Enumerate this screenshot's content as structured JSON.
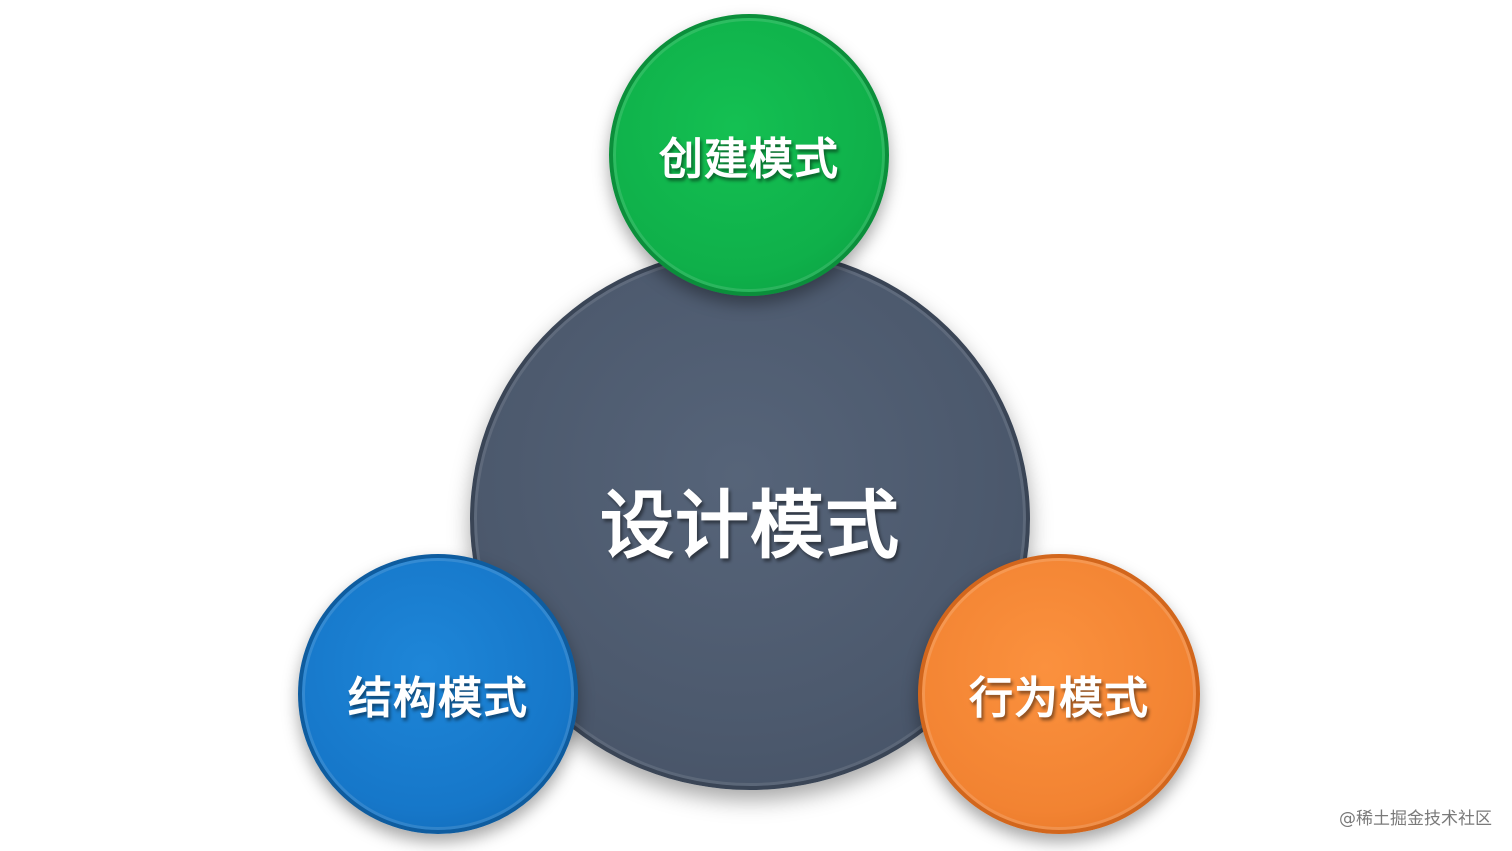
{
  "diagram": {
    "center": {
      "label": "设计模式",
      "color": "#4c596d"
    },
    "nodes": [
      {
        "label": "创建模式",
        "color": "#0fb04a"
      },
      {
        "label": "结构模式",
        "color": "#1677c9"
      },
      {
        "label": "行为模式",
        "color": "#f28332"
      }
    ]
  },
  "watermark": "@稀土掘金技术社区"
}
